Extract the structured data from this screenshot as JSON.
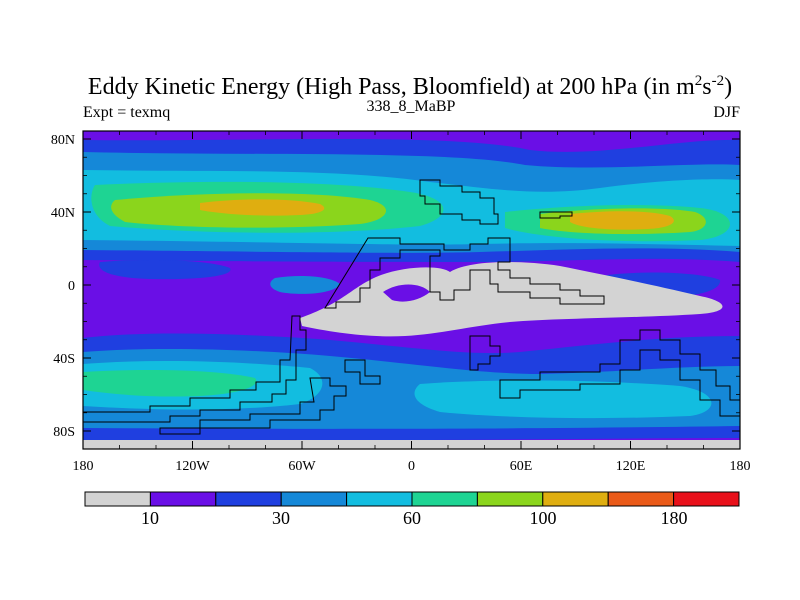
{
  "title": {
    "main": "Eddy Kinetic Energy (High Pass, Bloomfield) at 200 hPa (in m",
    "sup1": "2",
    "mid": "s",
    "sup2": "-2",
    "close": ")"
  },
  "left_label": "Expt = texmq",
  "center_label": "338_8_MaBP",
  "right_label": "DJF",
  "x_ticks": [
    "180",
    "120W",
    "60W",
    "0",
    "60E",
    "120E",
    "180"
  ],
  "y_ticks": [
    "80N",
    "40N",
    "0",
    "40S",
    "80S"
  ],
  "colorbar": {
    "colors": [
      "#d3d3d3",
      "#6a0fe6",
      "#1f3fe0",
      "#1588d8",
      "#12bde0",
      "#1ed493",
      "#8bd51c",
      "#dfae10",
      "#ea5a18",
      "#e8101a"
    ],
    "labels": [
      "10",
      "30",
      "60",
      "100",
      "180"
    ]
  },
  "map_colors": {
    "low": "#d3d3d3",
    "purple": "#6a0fe6",
    "blue": "#1f3fe0",
    "midblue": "#1588d8",
    "cyan": "#12bde0",
    "teal": "#1ed493",
    "green": "#8bd51c",
    "orange": "#dfae10"
  }
}
